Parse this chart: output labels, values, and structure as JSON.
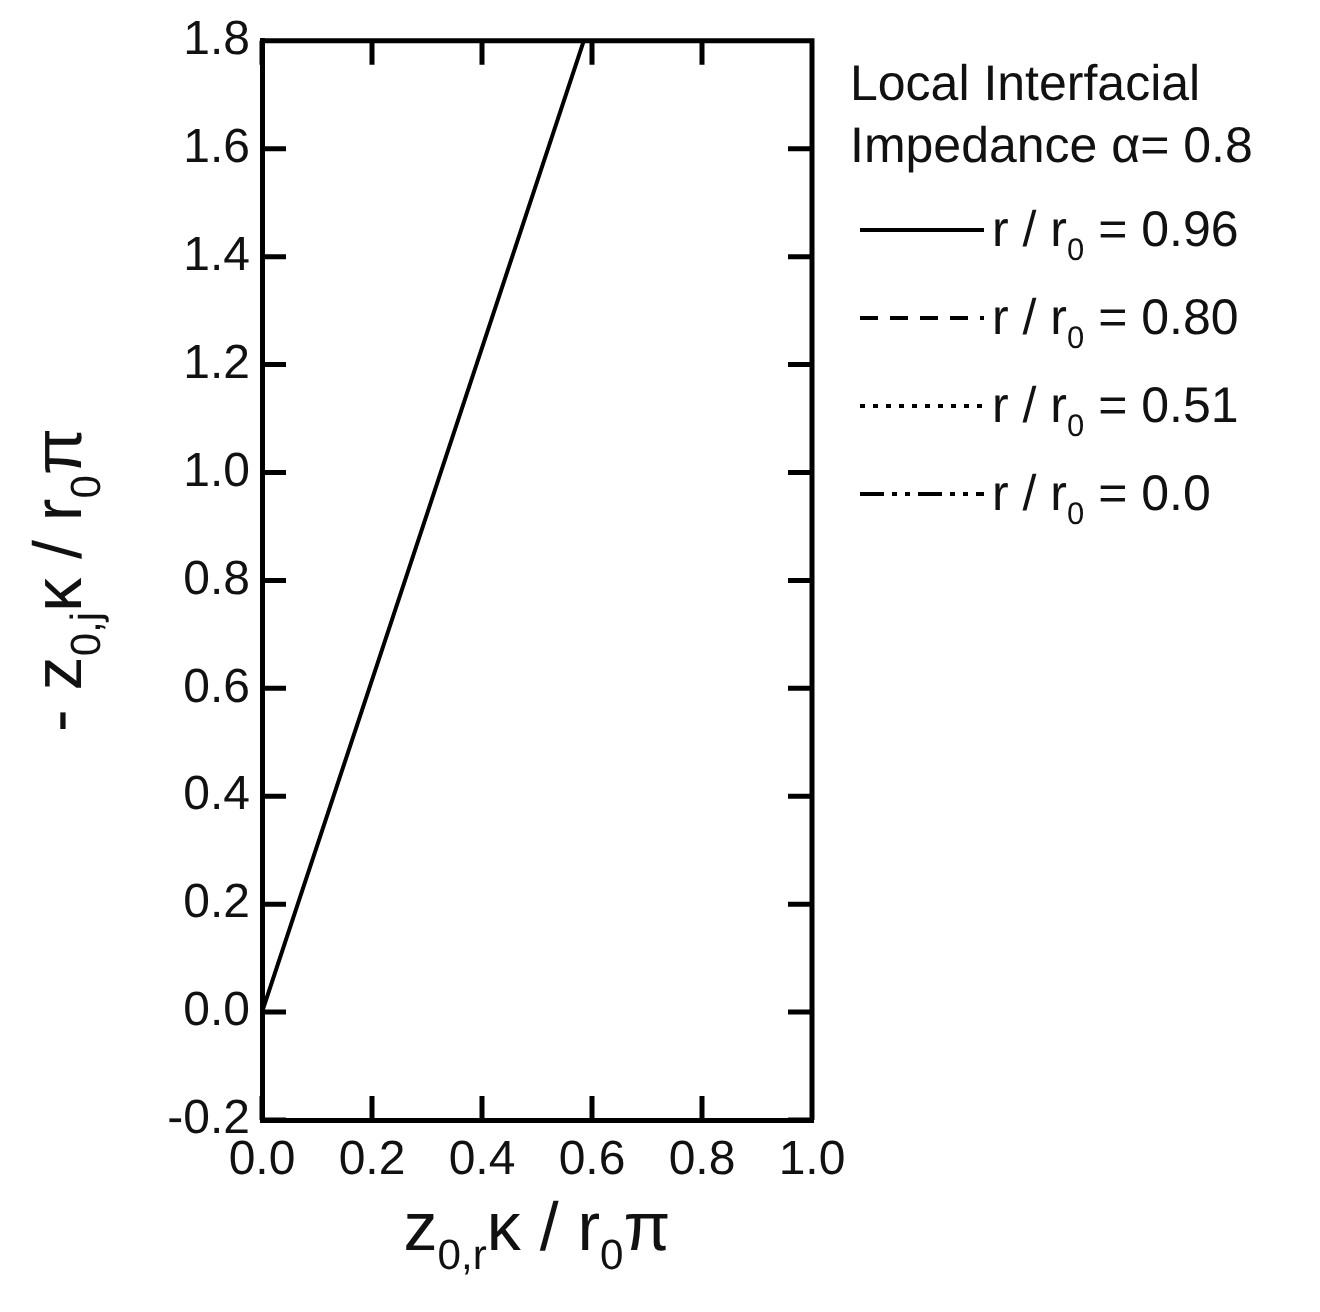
{
  "chart_data": {
    "type": "line",
    "xlabel": "z$_{0,r}$κ / r$_{0}$π",
    "ylabel": "- z$_{0,j}$κ / r$_{0}$π",
    "legend_title": "Local Interfacial Impedance α= 0.8",
    "x": [
      0,
      0.065,
      0.195,
      0.325,
      0.455,
      0.585
    ],
    "series": [
      {
        "name": "r / r$_{0}$ = 0.96",
        "color": "#000000",
        "line_style": "solid",
        "values": [
          0,
          0.2,
          0.6,
          1.0,
          1.4,
          1.8
        ]
      },
      {
        "name": "r / r$_{0}$ = 0.80",
        "color": "#000000",
        "line_style": "dashed",
        "values": [
          null,
          null,
          null,
          null,
          null,
          null
        ]
      },
      {
        "name": "r / r$_{0}$ = 0.51",
        "color": "#000000",
        "line_style": "dotted",
        "values": [
          null,
          null,
          null,
          null,
          null,
          null
        ]
      },
      {
        "name": "r / r$_{0}$ = 0.0",
        "color": "#000000",
        "line_style": "dashdotdot",
        "values": [
          null,
          null,
          null,
          null,
          null,
          null
        ]
      }
    ],
    "xlim": [
      0,
      1
    ],
    "ylim": [
      -0.2,
      1.8
    ],
    "xticks": [
      {
        "value": 0,
        "label": "0.0"
      },
      0.2,
      0.4,
      0.6,
      0.8,
      {
        "value": 1,
        "label": "1.0"
      }
    ],
    "yticks": [
      -0.2,
      {
        "value": 0,
        "label": "0.0"
      },
      0.2,
      0.4,
      0.6,
      0.8,
      {
        "value": 1,
        "label": "1.0"
      },
      1.2,
      1.4,
      1.6,
      1.8
    ],
    "legend": "right"
  }
}
